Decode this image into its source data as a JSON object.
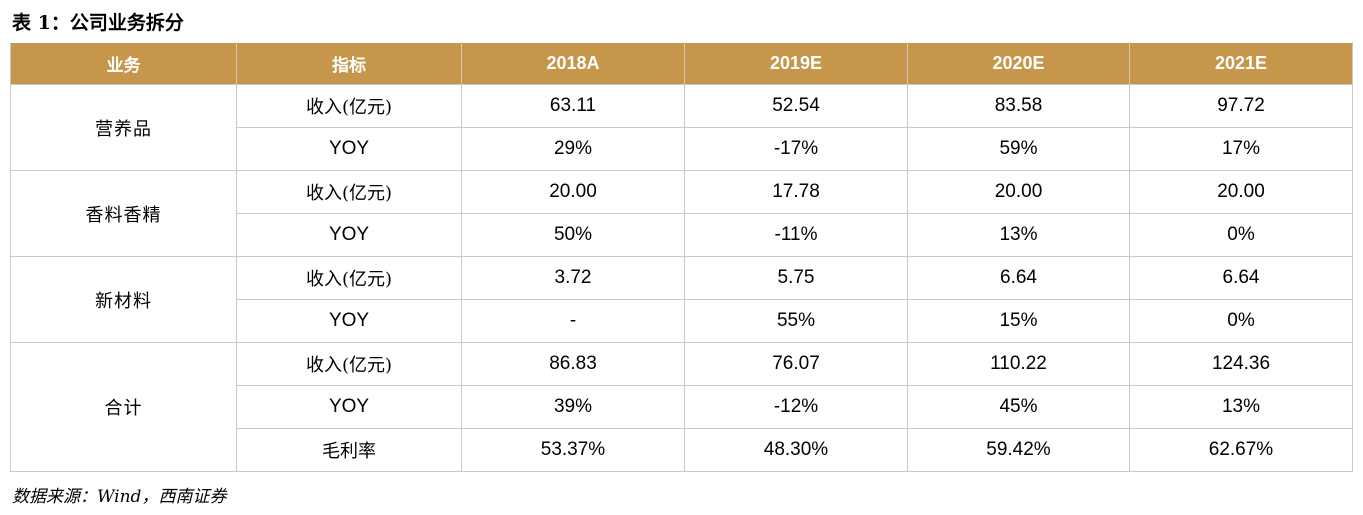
{
  "title": "表 1：公司业务拆分",
  "header": [
    "业务",
    "指标",
    "2018A",
    "2019E",
    "2020E",
    "2021E"
  ],
  "groups": [
    {
      "segment": "营养品",
      "rows": [
        {
          "metric": "收入(亿元)",
          "values": [
            "63.11",
            "52.54",
            "83.58",
            "97.72"
          ]
        },
        {
          "metric": "YOY",
          "values": [
            "29%",
            "-17%",
            "59%",
            "17%"
          ]
        }
      ]
    },
    {
      "segment": "香料香精",
      "rows": [
        {
          "metric": "收入(亿元)",
          "values": [
            "20.00",
            "17.78",
            "20.00",
            "20.00"
          ]
        },
        {
          "metric": "YOY",
          "values": [
            "50%",
            "-11%",
            "13%",
            "0%"
          ]
        }
      ]
    },
    {
      "segment": "新材料",
      "rows": [
        {
          "metric": "收入(亿元)",
          "values": [
            "3.72",
            "5.75",
            "6.64",
            "6.64"
          ]
        },
        {
          "metric": "YOY",
          "values": [
            "-",
            "55%",
            "15%",
            "0%"
          ]
        }
      ]
    },
    {
      "segment": "合计",
      "rows": [
        {
          "metric": "收入(亿元)",
          "values": [
            "86.83",
            "76.07",
            "110.22",
            "124.36"
          ]
        },
        {
          "metric": "YOY",
          "values": [
            "39%",
            "-12%",
            "45%",
            "13%"
          ]
        },
        {
          "metric": "毛利率",
          "values": [
            "53.37%",
            "48.30%",
            "59.42%",
            "62.67%"
          ]
        }
      ]
    }
  ],
  "source": "数据来源：Wind，西南证券",
  "colors": {
    "header_bg": "#c6964a",
    "header_text": "#ffffff",
    "border": "#c9c9c9"
  }
}
